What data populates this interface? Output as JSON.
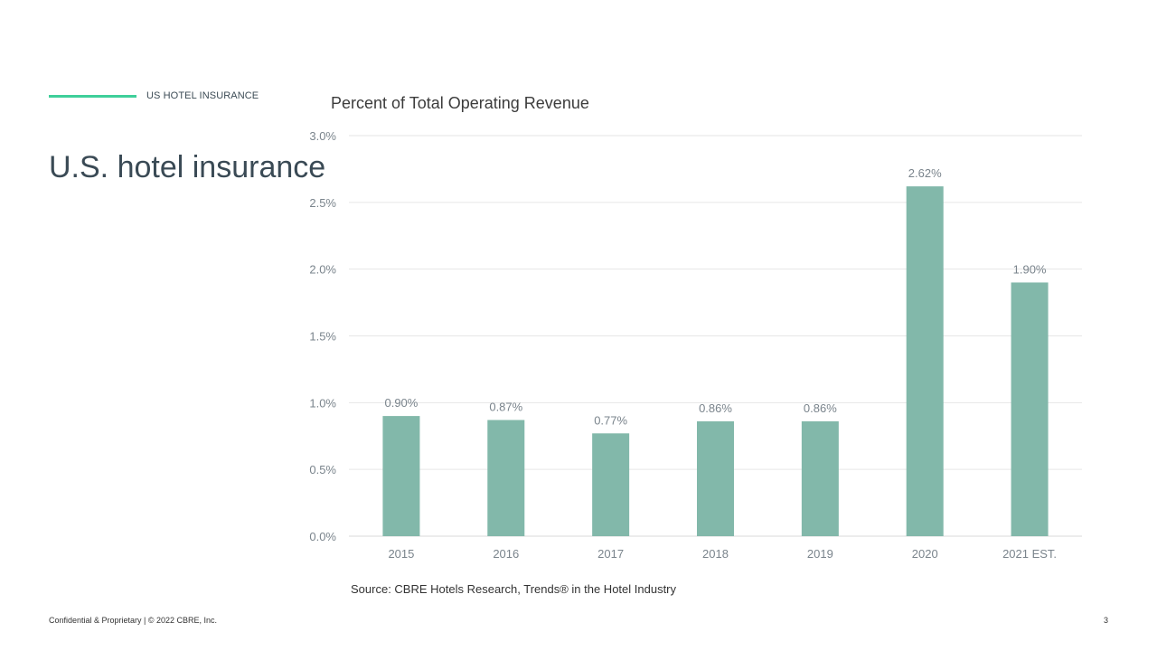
{
  "header": {
    "section_label": "US HOTEL INSURANCE",
    "title": "U.S. hotel insurance"
  },
  "chart_data": {
    "type": "bar",
    "title": "Percent of Total Operating Revenue",
    "categories": [
      "2015",
      "2016",
      "2017",
      "2018",
      "2019",
      "2020",
      "2021 EST."
    ],
    "values": [
      0.9,
      0.87,
      0.77,
      0.86,
      0.86,
      2.62,
      1.9
    ],
    "data_labels": [
      "0.90%",
      "0.87%",
      "0.77%",
      "0.86%",
      "0.86%",
      "2.62%",
      "1.90%"
    ],
    "y_ticks": [
      "0.0%",
      "0.5%",
      "1.0%",
      "1.5%",
      "2.0%",
      "2.5%",
      "3.0%"
    ],
    "ylim": [
      0,
      3.0
    ],
    "xlabel": "",
    "ylabel": "",
    "grid": true,
    "bar_color": "#82b8aa",
    "grid_color": "#e6e6e6"
  },
  "source": "Source: CBRE Hotels Research, Trends® in the Hotel Industry",
  "footer": {
    "confidential": "Confidential & Proprietary | © 2022 CBRE, Inc.",
    "page_number": "3"
  },
  "colors": {
    "accent": "#3fcf9a",
    "title_text": "#3a4a55",
    "axis_text": "#7a848c"
  }
}
